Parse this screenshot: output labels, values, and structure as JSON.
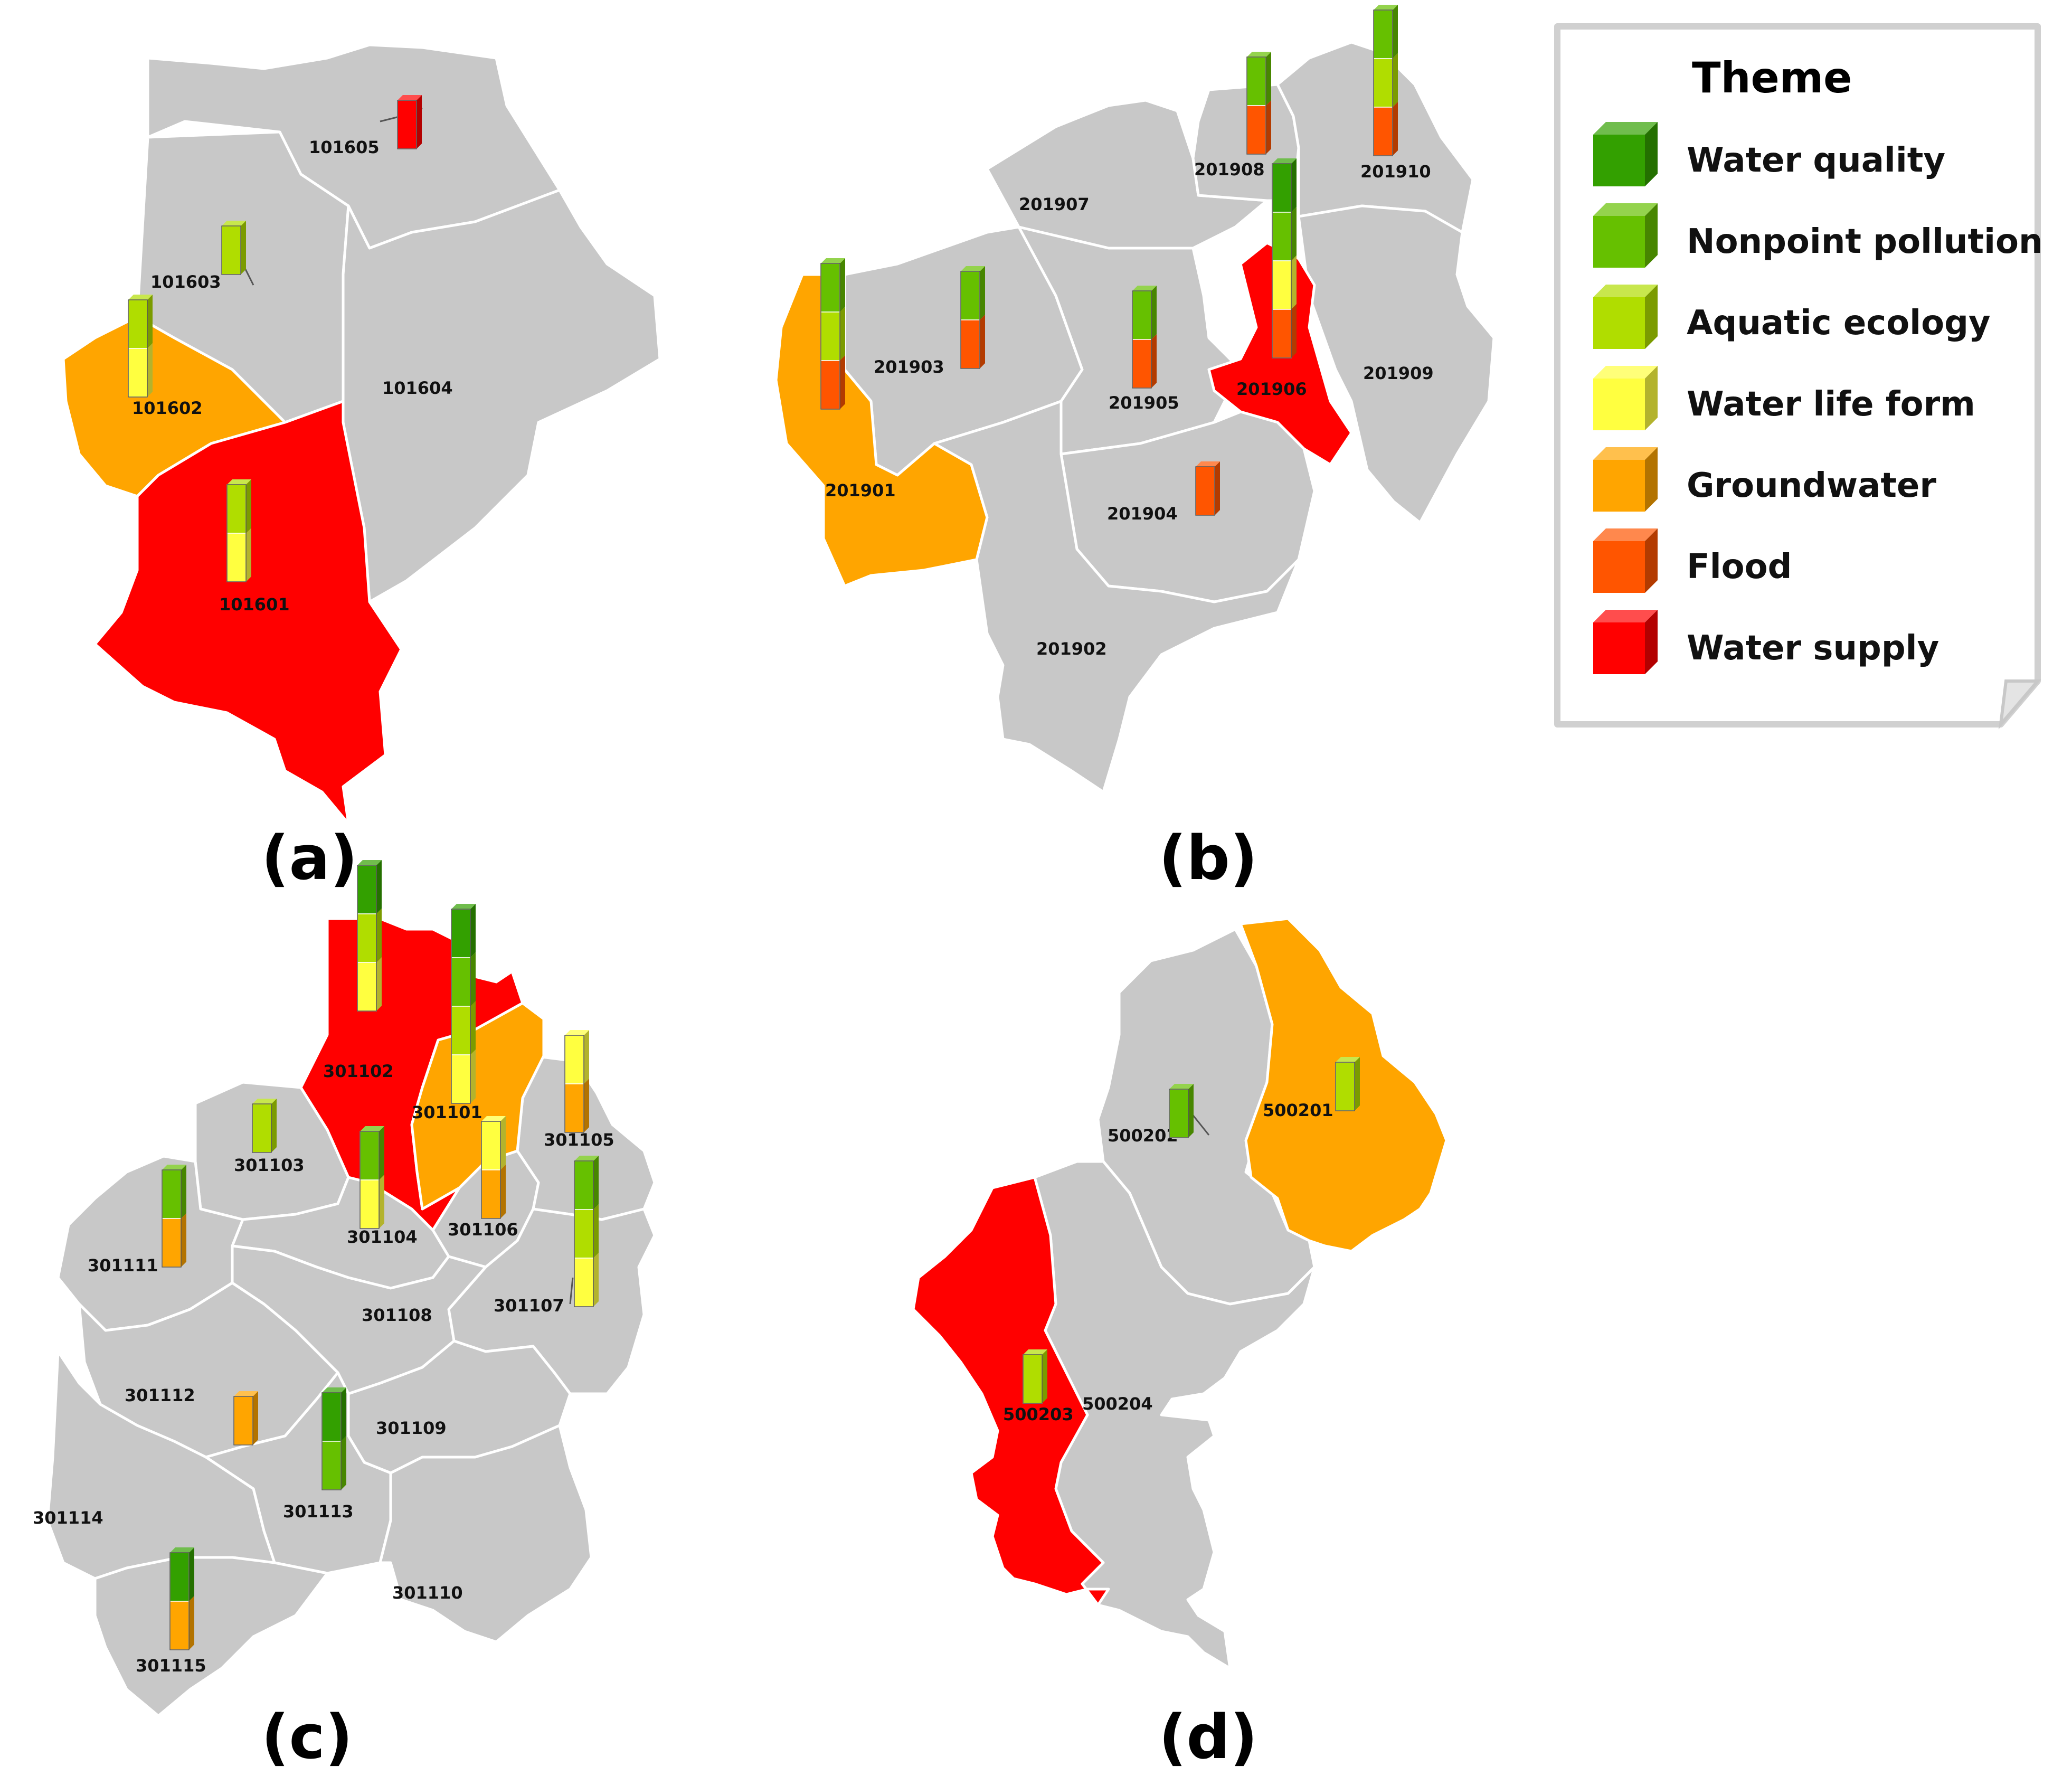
{
  "legend": {
    "title": "Theme",
    "items": [
      {
        "label": "Water quality",
        "color": "#33A000",
        "icon": "cube-icon"
      },
      {
        "label": "Nonpoint pollution",
        "color": "#66C000",
        "icon": "cube-icon"
      },
      {
        "label": "Aquatic ecology",
        "color": "#B0DD00",
        "icon": "cube-icon"
      },
      {
        "label": "Water life form",
        "color": "#FFFF40",
        "icon": "cube-icon"
      },
      {
        "label": "Groundwater",
        "color": "#FFA500",
        "icon": "cube-icon"
      },
      {
        "label": "Flood",
        "color": "#FF5500",
        "icon": "cube-icon"
      },
      {
        "label": "Water supply",
        "color": "#FF0000",
        "icon": "cube-icon"
      }
    ]
  },
  "colors": {
    "region_default": "#C8C8C8",
    "groundwater_fill": "#FFA500",
    "water_supply_fill": "#FF0000",
    "highlight_outline": "#40E0E0"
  },
  "panels": [
    {
      "label": "(a)",
      "regions": [
        {
          "id": "101601",
          "theme": "Water supply",
          "indicators": [
            "Aquatic ecology",
            "Water life form"
          ]
        },
        {
          "id": "101602",
          "theme": "Groundwater",
          "indicators": [
            "Aquatic ecology",
            "Water life form"
          ]
        },
        {
          "id": "101603",
          "theme": "",
          "indicators": [
            "Aquatic ecology"
          ]
        },
        {
          "id": "101604",
          "theme": "",
          "indicators": []
        },
        {
          "id": "101605",
          "theme": "",
          "indicators": [
            "Water supply"
          ]
        }
      ]
    },
    {
      "label": "(b)",
      "regions": [
        {
          "id": "201901",
          "theme": "Groundwater",
          "indicators": [
            "Nonpoint pollution",
            "Aquatic ecology",
            "Flood"
          ]
        },
        {
          "id": "201902",
          "theme": "",
          "indicators": []
        },
        {
          "id": "201903",
          "theme": "",
          "indicators": [
            "Nonpoint pollution",
            "Flood"
          ]
        },
        {
          "id": "201904",
          "theme": "",
          "indicators": [
            "Flood"
          ]
        },
        {
          "id": "201905",
          "theme": "",
          "indicators": [
            "Nonpoint pollution",
            "Flood"
          ]
        },
        {
          "id": "201906",
          "theme": "Water supply",
          "indicators": [
            "Water quality",
            "Nonpoint pollution",
            "Water life form",
            "Flood"
          ]
        },
        {
          "id": "201907",
          "theme": "",
          "indicators": []
        },
        {
          "id": "201908",
          "theme": "",
          "indicators": [
            "Nonpoint pollution",
            "Flood"
          ]
        },
        {
          "id": "201909",
          "theme": "",
          "indicators": []
        },
        {
          "id": "201910",
          "theme": "",
          "indicators": [
            "Nonpoint pollution",
            "Aquatic ecology",
            "Flood"
          ]
        }
      ]
    },
    {
      "label": "(c)",
      "regions": [
        {
          "id": "301101",
          "theme": "Groundwater",
          "indicators": [
            "Water quality",
            "Nonpoint pollution",
            "Aquatic ecology",
            "Water life form"
          ]
        },
        {
          "id": "301102",
          "theme": "Water supply",
          "indicators": [
            "Water quality",
            "Aquatic ecology",
            "Water life form"
          ]
        },
        {
          "id": "301103",
          "theme": "",
          "indicators": [
            "Aquatic ecology"
          ]
        },
        {
          "id": "301104",
          "theme": "",
          "indicators": [
            "Nonpoint pollution",
            "Water life form"
          ]
        },
        {
          "id": "301105",
          "theme": "",
          "indicators": [
            "Water life form",
            "Groundwater"
          ]
        },
        {
          "id": "301106",
          "theme": "",
          "indicators": [
            "Water life form",
            "Groundwater"
          ]
        },
        {
          "id": "301107",
          "theme": "",
          "indicators": [
            "Nonpoint pollution",
            "Aquatic ecology",
            "Water life form"
          ]
        },
        {
          "id": "301108",
          "theme": "",
          "indicators": []
        },
        {
          "id": "301109",
          "theme": "",
          "indicators": []
        },
        {
          "id": "301110",
          "theme": "",
          "indicators": []
        },
        {
          "id": "301111",
          "theme": "",
          "indicators": [
            "Nonpoint pollution",
            "Groundwater"
          ]
        },
        {
          "id": "301112",
          "theme": "",
          "indicators": [
            "Groundwater"
          ]
        },
        {
          "id": "301113",
          "theme": "",
          "indicators": [
            "Water quality",
            "Nonpoint pollution"
          ]
        },
        {
          "id": "301114",
          "theme": "",
          "indicators": []
        },
        {
          "id": "301115",
          "theme": "",
          "indicators": [
            "Water quality",
            "Groundwater"
          ]
        }
      ]
    },
    {
      "label": "(d)",
      "regions": [
        {
          "id": "500201",
          "theme": "Groundwater",
          "indicators": [
            "Aquatic ecology"
          ]
        },
        {
          "id": "500202",
          "theme": "",
          "indicators": [
            "Nonpoint pollution"
          ]
        },
        {
          "id": "500203",
          "theme": "Water supply",
          "indicators": [
            "Aquatic ecology"
          ]
        },
        {
          "id": "500204",
          "theme": "",
          "indicators": []
        }
      ]
    }
  ]
}
